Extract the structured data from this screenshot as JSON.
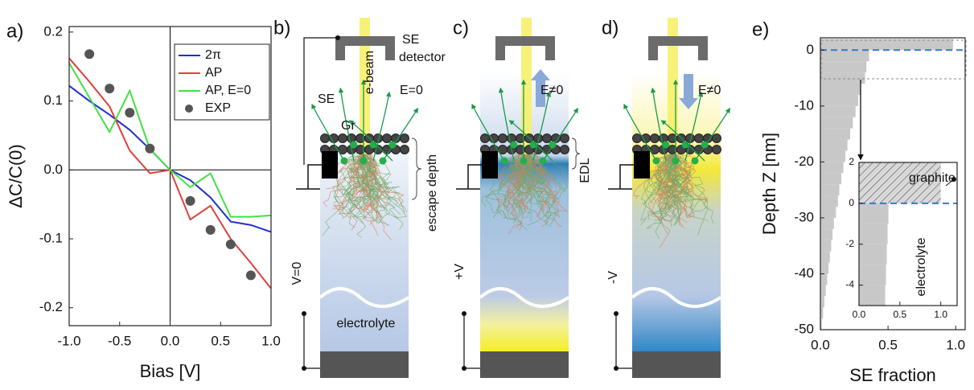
{
  "chart_data": [
    {
      "type": "line",
      "panel_label": "a)",
      "xlabel": "Bias [V]",
      "ylabel": "ΔC/C(0)",
      "x": [
        -1,
        -0.8,
        -0.6,
        -0.4,
        -0.2,
        0,
        0.2,
        0.4,
        0.6,
        0.8,
        1
      ],
      "series": [
        {
          "name": "2π",
          "color": "#1f2fd0",
          "values": [
            0.122,
            0.1,
            0.08,
            0.058,
            0.03,
            0,
            -0.015,
            -0.04,
            -0.075,
            -0.08,
            -0.09
          ]
        },
        {
          "name": "AP",
          "color": "#e0403c",
          "values": [
            0.162,
            0.128,
            0.092,
            0.028,
            -0.005,
            0,
            -0.072,
            -0.052,
            -0.1,
            -0.135,
            -0.172
          ]
        },
        {
          "name": "AP, E=0",
          "color": "#44e044",
          "values": [
            0.155,
            0.105,
            0.055,
            0.115,
            0.03,
            0,
            -0.025,
            -0.005,
            -0.068,
            -0.068,
            -0.066
          ]
        },
        {
          "name": "EXP",
          "color": "#555555",
          "mode": "markers",
          "x": [
            -0.8,
            -0.6,
            -0.4,
            -0.2,
            0.2,
            0.4,
            0.6,
            0.8
          ],
          "values": [
            0.168,
            0.118,
            0.083,
            0.031,
            -0.045,
            -0.087,
            -0.108,
            -0.153
          ]
        }
      ],
      "xlim": [
        -1,
        1
      ],
      "ylim": [
        -0.226,
        0.208
      ],
      "xticks": [
        {
          "value": -1,
          "label": "-1.0"
        },
        {
          "value": -0.5,
          "label": "-0.5"
        },
        {
          "value": 0,
          "label": "0.0"
        },
        {
          "value": 0.5,
          "label": "0.5"
        },
        {
          "value": 1,
          "label": "1.0"
        }
      ],
      "yticks": [
        0.2,
        0.1,
        {
          "value": 0,
          "label": "0.0"
        },
        -0.1,
        -0.2
      ],
      "zero_axes": true,
      "legend": "upper right"
    },
    {
      "type": "histogram",
      "orientation": "horizontal",
      "panel_label": "e)",
      "xlabel": "SE fraction",
      "ylabel": "Depth Z [nm]",
      "bins": [
        2,
        0,
        -2,
        -4,
        -6,
        -8,
        -10,
        -12,
        -14,
        -16,
        -18,
        -20,
        -22,
        -24,
        -26,
        -28,
        -30,
        -32,
        -34,
        -36,
        -38,
        -40,
        -42,
        -44,
        -46,
        -48,
        -50
      ],
      "values": [
        0.98,
        0.36,
        0.34,
        0.33,
        0.3,
        0.28,
        0.26,
        0.24,
        0.22,
        0.2,
        0.185,
        0.17,
        0.155,
        0.14,
        0.13,
        0.115,
        0.1,
        0.09,
        0.08,
        0.07,
        0.06,
        0.05,
        0.04,
        0.03,
        0.02,
        0.01
      ],
      "color": "#c8c8c8",
      "xlim": [
        0,
        1.07
      ],
      "ylim": [
        -50,
        2.2
      ],
      "xticks": [
        {
          "value": 0,
          "label": "0.0"
        },
        0.5,
        {
          "value": 1,
          "label": "1.0"
        }
      ],
      "yticks": [
        0,
        -10,
        -20,
        -30,
        -40,
        -50
      ],
      "zero_line": true
    },
    {
      "type": "histogram",
      "orientation": "horizontal",
      "inset": true,
      "bins": [
        2,
        0,
        -1,
        -2,
        -3,
        -4,
        -5
      ],
      "values": [
        1,
        0.36,
        0.35,
        0.34,
        0.33,
        0.32
      ],
      "color": "#c8c8c8",
      "hatch_above_zero": true,
      "xlim": [
        0,
        1.2
      ],
      "ylim": [
        -5,
        2
      ],
      "xticks": [
        {
          "value": 0,
          "label": "0.0"
        },
        0.5,
        {
          "value": 1,
          "label": "1.0"
        }
      ],
      "yticks": [
        2,
        0,
        -2,
        -4
      ],
      "zero_line": true,
      "annotations": [
        "graphite",
        "electrolyte"
      ]
    }
  ],
  "diagrams": [
    {
      "label": "b)",
      "texts": [
        "SE",
        "detector",
        "e-beam",
        "E=0",
        "SE",
        "Gr",
        "escape depth",
        "V=0",
        "electrolyte"
      ]
    },
    {
      "label": "c)",
      "texts": [
        "E≠0",
        "EDL",
        "+V"
      ]
    },
    {
      "label": "d)",
      "texts": [
        "E≠0",
        "-V"
      ]
    }
  ]
}
